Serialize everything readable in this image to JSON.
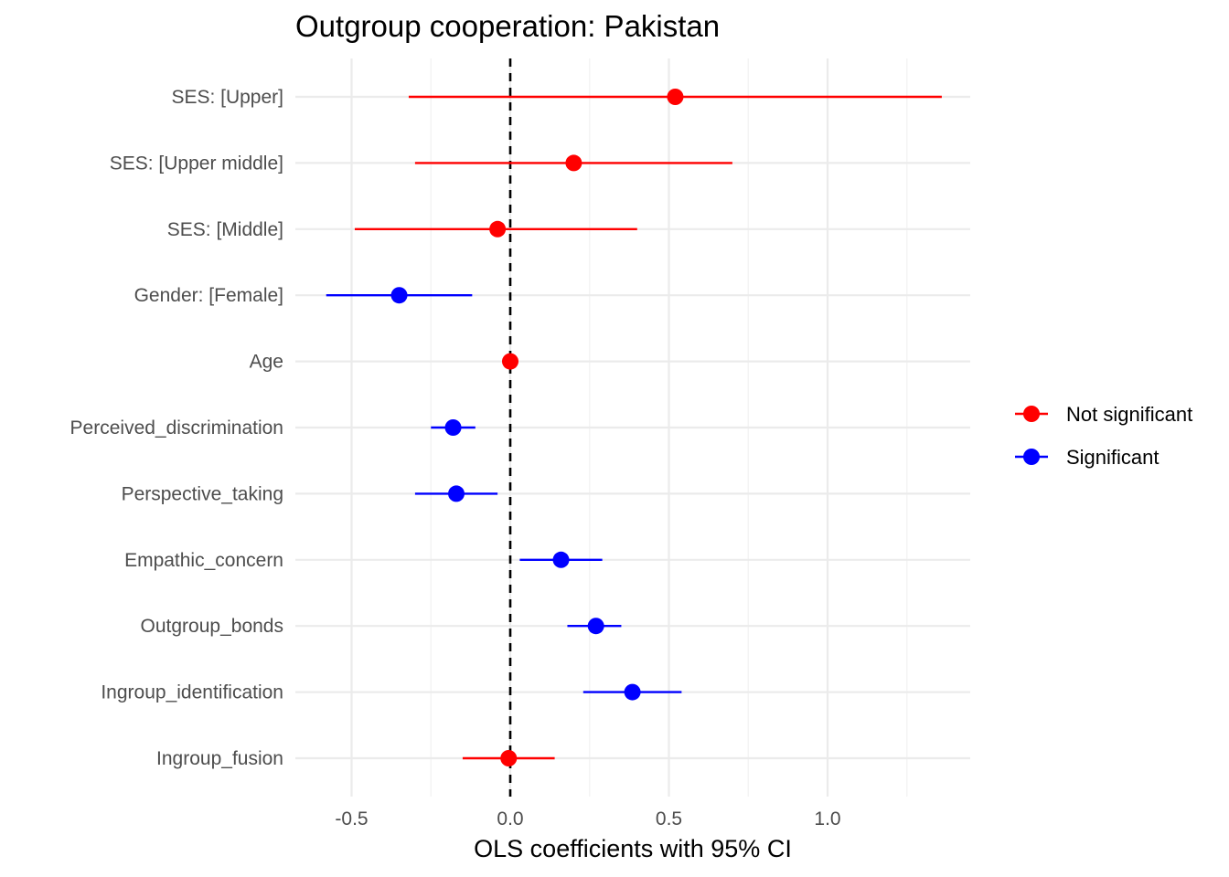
{
  "chart_data": {
    "type": "scatter",
    "title": "Outgroup cooperation: Pakistan",
    "xlabel": "OLS coefficients with 95% CI",
    "ylabel": "",
    "xlim": [
      -0.68,
      1.45
    ],
    "xticks": [
      -0.5,
      0.0,
      0.5,
      1.0
    ],
    "xtick_labels": [
      "-0.5",
      "0.0",
      "0.5",
      "1.0"
    ],
    "reference_line": 0,
    "grid": true,
    "legend_position": "right",
    "legend": [
      {
        "name": "Not significant",
        "color": "#ff0000"
      },
      {
        "name": "Significant",
        "color": "#0000ff"
      }
    ],
    "terms": [
      {
        "label": "SES:  [Upper]",
        "estimate": 0.52,
        "ci_low": -0.32,
        "ci_high": 1.36,
        "group": "Not significant"
      },
      {
        "label": "SES:  [Upper middle]",
        "estimate": 0.2,
        "ci_low": -0.3,
        "ci_high": 0.7,
        "group": "Not significant"
      },
      {
        "label": "SES:  [Middle]",
        "estimate": -0.04,
        "ci_low": -0.49,
        "ci_high": 0.4,
        "group": "Not significant"
      },
      {
        "label": "Gender:  [Female]",
        "estimate": -0.35,
        "ci_low": -0.58,
        "ci_high": -0.12,
        "group": "Significant"
      },
      {
        "label": "Age",
        "estimate": 0.0,
        "ci_low": -0.01,
        "ci_high": 0.01,
        "group": "Not significant"
      },
      {
        "label": "Perceived_discrimination",
        "estimate": -0.18,
        "ci_low": -0.25,
        "ci_high": -0.11,
        "group": "Significant"
      },
      {
        "label": "Perspective_taking",
        "estimate": -0.17,
        "ci_low": -0.3,
        "ci_high": -0.04,
        "group": "Significant"
      },
      {
        "label": "Empathic_concern",
        "estimate": 0.16,
        "ci_low": 0.03,
        "ci_high": 0.29,
        "group": "Significant"
      },
      {
        "label": "Outgroup_bonds",
        "estimate": 0.27,
        "ci_low": 0.18,
        "ci_high": 0.35,
        "group": "Significant"
      },
      {
        "label": "Ingroup_identification",
        "estimate": 0.385,
        "ci_low": 0.23,
        "ci_high": 0.54,
        "group": "Significant"
      },
      {
        "label": "Ingroup_fusion",
        "estimate": -0.005,
        "ci_low": -0.15,
        "ci_high": 0.14,
        "group": "Not significant"
      }
    ]
  }
}
